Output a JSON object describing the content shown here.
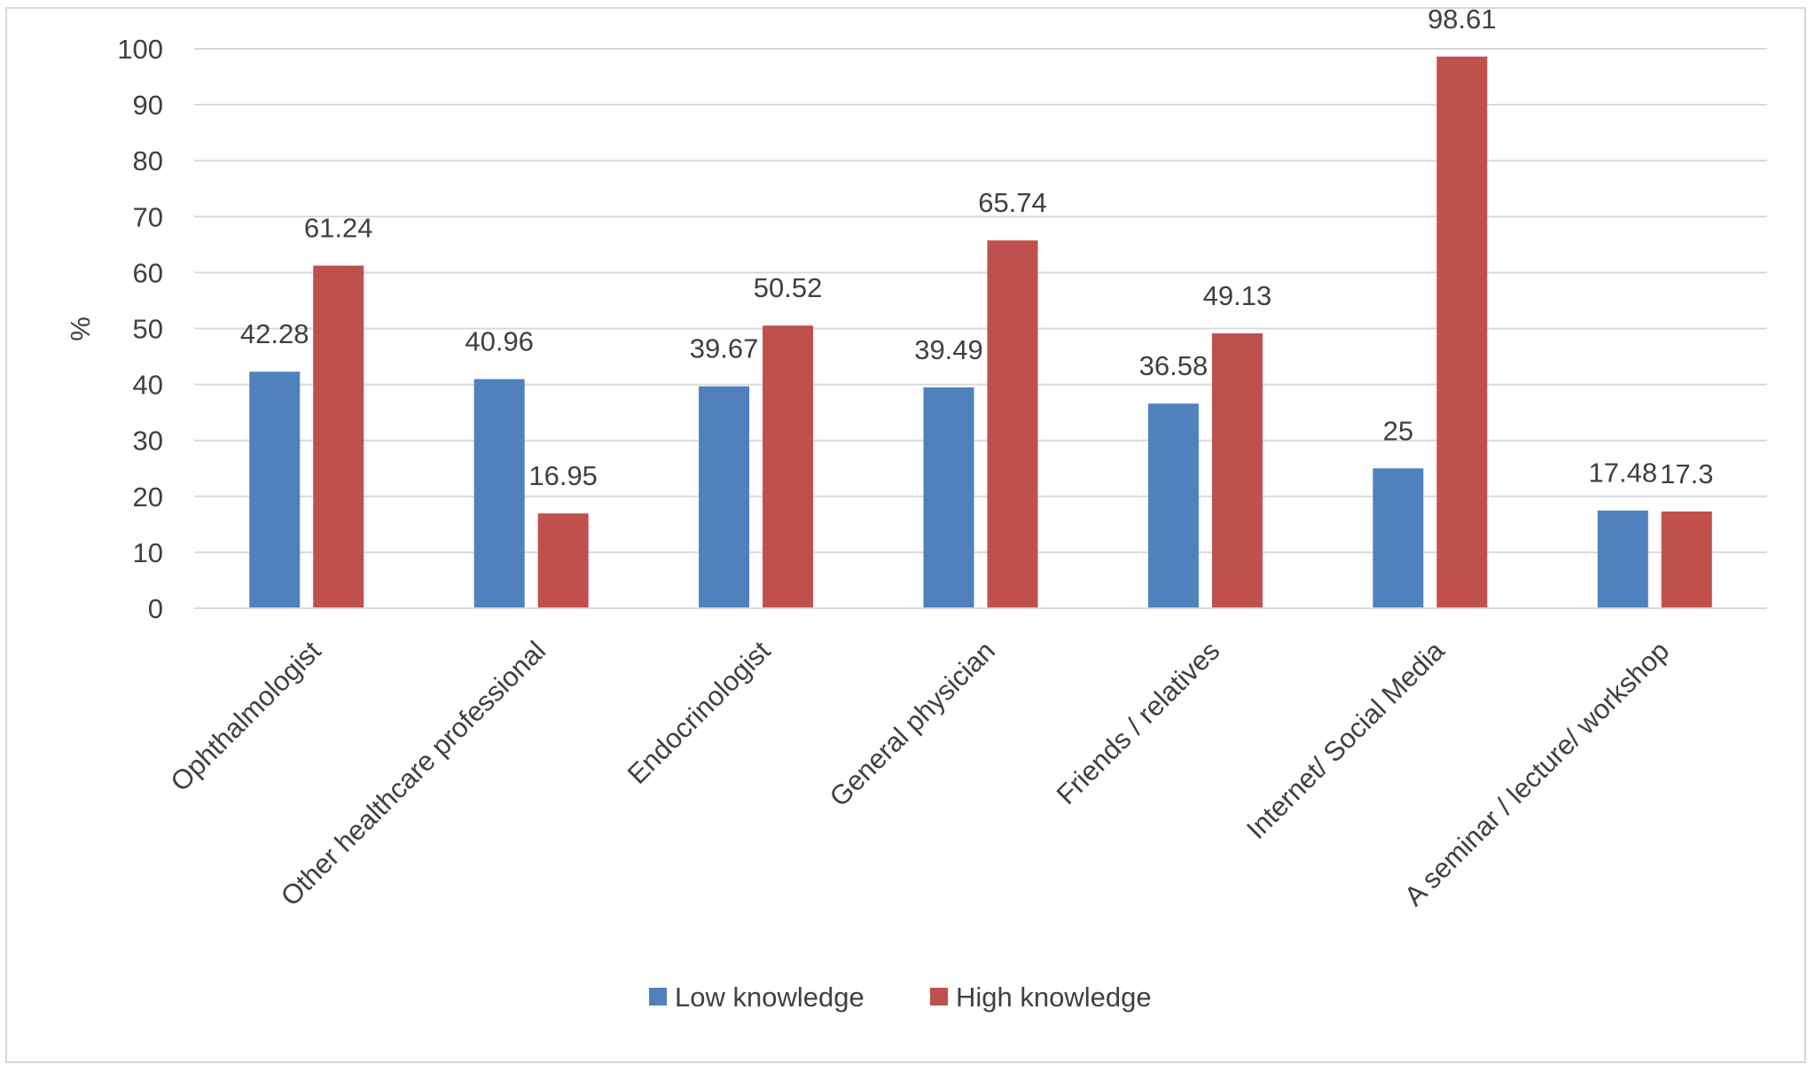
{
  "chart_data": {
    "type": "bar",
    "title": "",
    "xlabel": "",
    "ylabel": "%",
    "ylim": [
      0,
      100
    ],
    "ytick_step": 10,
    "grid": true,
    "legend_position": "bottom",
    "categories": [
      "Ophthalmologist",
      "Other healthcare professional",
      "Endocrinologist",
      "General physician",
      "Friends / relatives",
      "Internet/ Social Media",
      "A seminar / lecture/ workshop"
    ],
    "series": [
      {
        "name": "Low knowledge",
        "color": "#4f81bd",
        "values": [
          42.28,
          40.96,
          39.67,
          39.49,
          36.58,
          25,
          17.48
        ]
      },
      {
        "name": "High knowledge",
        "color": "#c0504d",
        "values": [
          61.24,
          16.95,
          50.52,
          65.74,
          49.13,
          98.61,
          17.3
        ]
      }
    ]
  }
}
